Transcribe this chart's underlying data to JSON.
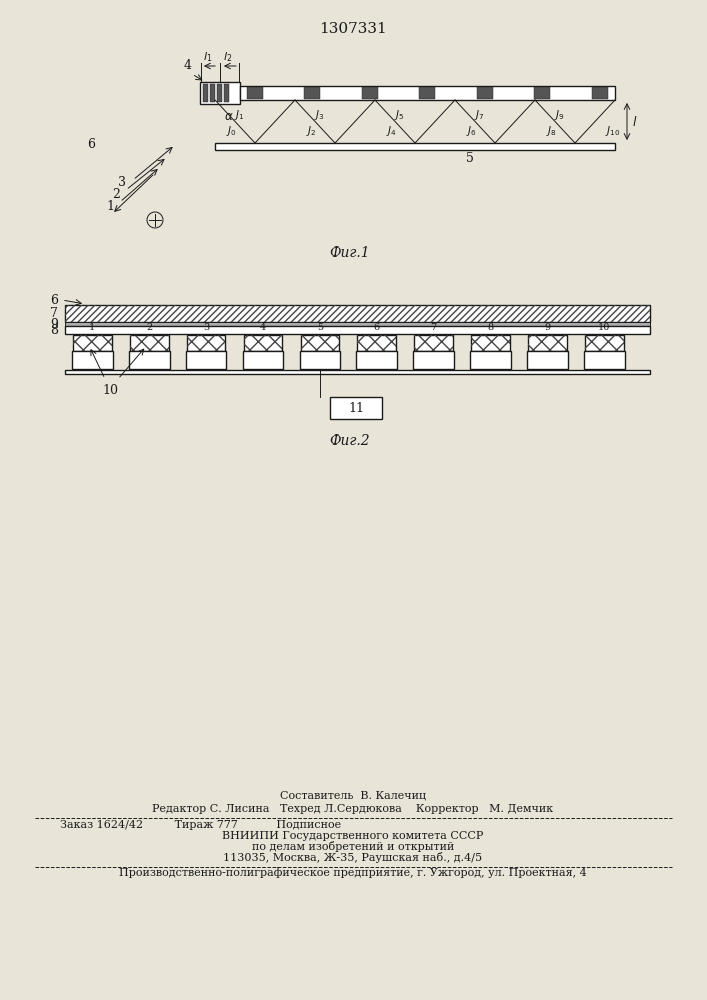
{
  "patent_number": "1307331",
  "fig1_label": "Фиг.1",
  "fig2_label": "Фиг.2",
  "bg_color": "#e8e4d8",
  "line_color": "#1a1a1a",
  "footer_compose": "Составитель  В. Калечиц",
  "footer_editors": "Редактор С. Лисина   Техред Л.Сердюкова    Корректор   М. Демчик",
  "footer_order": "Заказ 1624/42         Тираж 777           Подписное",
  "footer_vn1": "ВНИИПИ Государственного комитета СССР",
  "footer_vn2": "по делам изобретений и открытий",
  "footer_vn3": "113035, Москва, Ж-35, Раушская наб., д.4/5",
  "footer_prod": "Производственно-полиграфическое предприятие, г. Ужгород, ул. Проектная, 4"
}
